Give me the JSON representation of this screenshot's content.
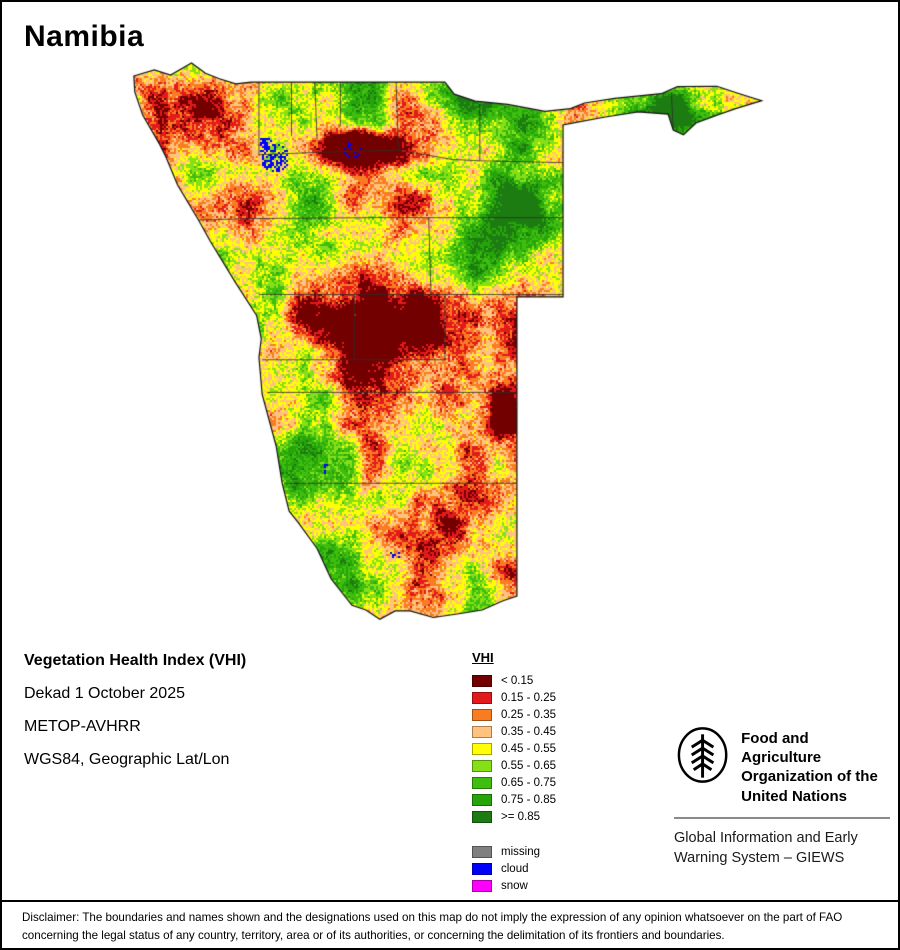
{
  "page": {
    "title": "Namibia"
  },
  "info": {
    "product": "Vegetation Health Index (VHI)",
    "dekad": "Dekad 1 October 2025",
    "sensor": "METOP-AVHRR",
    "projection": "WGS84, Geographic Lat/Lon"
  },
  "legend": {
    "title": "VHI",
    "classes": [
      {
        "label": "< 0.15",
        "color": "#730000"
      },
      {
        "label": "0.15 - 0.25",
        "color": "#e31a1c"
      },
      {
        "label": "0.25 - 0.35",
        "color": "#f97d20"
      },
      {
        "label": "0.35 - 0.45",
        "color": "#ffc37f"
      },
      {
        "label": "0.45 - 0.55",
        "color": "#ffff00"
      },
      {
        "label": "0.55 - 0.65",
        "color": "#86e018"
      },
      {
        "label": "0.65 - 0.75",
        "color": "#3fbe0f"
      },
      {
        "label": "0.75 - 0.85",
        "color": "#26a50a"
      },
      {
        "label": ">= 0.85",
        "color": "#1c7c12"
      }
    ],
    "extra": [
      {
        "label": "missing",
        "color": "#808080"
      },
      {
        "label": "cloud",
        "color": "#0000ff"
      },
      {
        "label": "snow",
        "color": "#ff00ff"
      }
    ]
  },
  "branding": {
    "fao_lines": [
      "Food and Agriculture",
      "Organization of the",
      "United Nations"
    ],
    "giews_lines": [
      "Global Information and Early",
      "Warning System – GIEWS"
    ]
  },
  "disclaimer": "Disclaimer: The boundaries and names shown and the designations used on this map do not imply the expression of any opinion whatsoever on the part of FAO concerning the legal status of any country, territory, area or of its authorities, or concerning the delimitation of its frontiers and boundaries."
}
